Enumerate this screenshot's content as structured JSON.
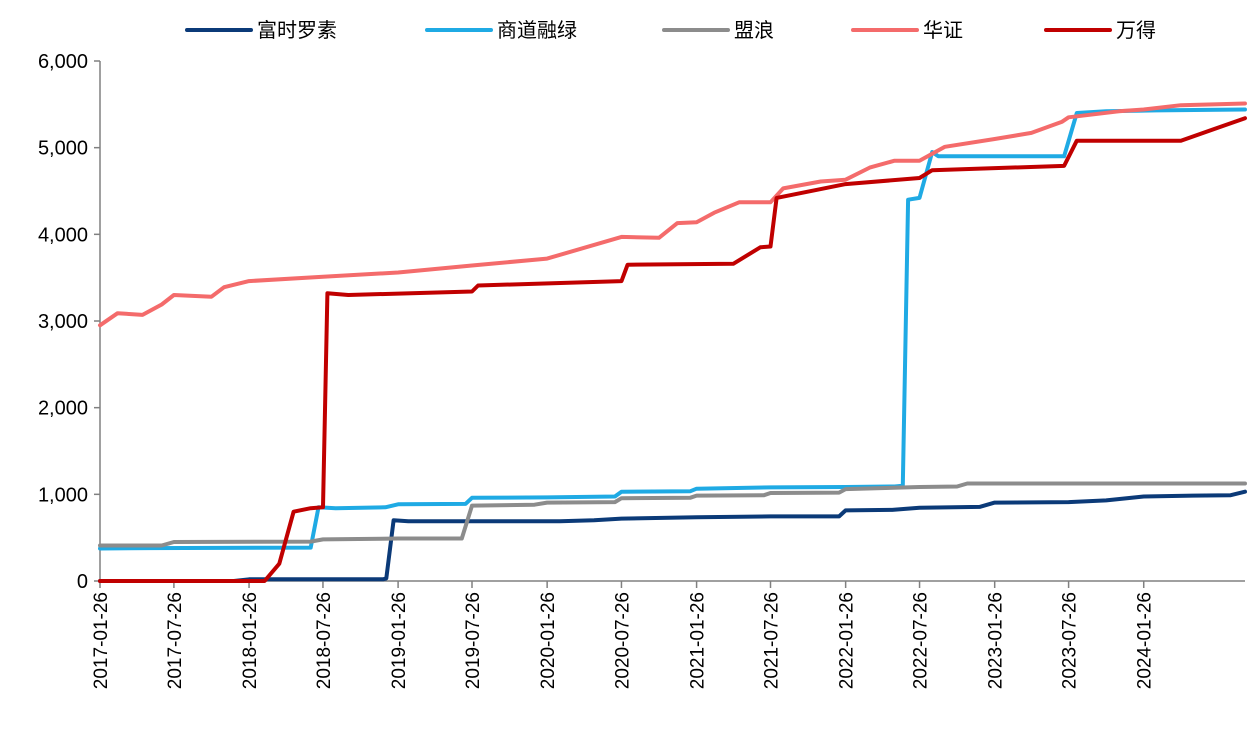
{
  "chart_data": {
    "type": "line",
    "title": "",
    "xlabel": "",
    "ylabel": "",
    "x_ticks": [
      "2017-01-26",
      "2017-07-26",
      "2018-01-26",
      "2018-07-26",
      "2019-01-26",
      "2019-07-26",
      "2020-01-26",
      "2020-07-26",
      "2021-01-26",
      "2021-07-26",
      "2022-01-26",
      "2022-07-26",
      "2023-01-26",
      "2023-07-26",
      "2024-01-26"
    ],
    "x_range": [
      "2017-01-26",
      "2024-09-30"
    ],
    "ylim": [
      0,
      6000
    ],
    "y_ticks": [
      "0",
      "1,000",
      "2,000",
      "3,000",
      "4,000",
      "5,000",
      "6,000"
    ],
    "grid": false,
    "legend_position": "top",
    "series": [
      {
        "name": "富时罗素",
        "color": "#0B3A78",
        "points": [
          [
            "2017-01-26",
            0
          ],
          [
            "2017-12-20",
            0
          ],
          [
            "2018-01-26",
            20
          ],
          [
            "2018-12-20",
            20
          ],
          [
            "2018-12-28",
            30
          ],
          [
            "2019-01-15",
            700
          ],
          [
            "2019-02-20",
            690
          ],
          [
            "2019-07-26",
            690
          ],
          [
            "2020-02-26",
            690
          ],
          [
            "2020-05-20",
            700
          ],
          [
            "2020-07-26",
            720
          ],
          [
            "2021-01-26",
            735
          ],
          [
            "2021-07-26",
            745
          ],
          [
            "2022-01-10",
            745
          ],
          [
            "2022-01-26",
            815
          ],
          [
            "2022-05-20",
            820
          ],
          [
            "2022-07-26",
            845
          ],
          [
            "2022-12-20",
            855
          ],
          [
            "2023-01-26",
            905
          ],
          [
            "2023-07-26",
            910
          ],
          [
            "2023-10-26",
            930
          ],
          [
            "2024-01-26",
            975
          ],
          [
            "2024-05-26",
            985
          ],
          [
            "2024-08-26",
            990
          ],
          [
            "2024-09-30",
            1030
          ]
        ]
      },
      {
        "name": "商道融绿",
        "color": "#1FAAE4",
        "points": [
          [
            "2017-01-26",
            375
          ],
          [
            "2017-05-26",
            380
          ],
          [
            "2018-06-26",
            385
          ],
          [
            "2018-07-15",
            850
          ],
          [
            "2018-08-26",
            840
          ],
          [
            "2018-12-26",
            850
          ],
          [
            "2019-01-26",
            885
          ],
          [
            "2019-07-10",
            890
          ],
          [
            "2019-07-26",
            960
          ],
          [
            "2020-01-26",
            965
          ],
          [
            "2020-07-10",
            975
          ],
          [
            "2020-07-26",
            1030
          ],
          [
            "2021-01-10",
            1035
          ],
          [
            "2021-01-26",
            1065
          ],
          [
            "2021-07-26",
            1080
          ],
          [
            "2022-01-26",
            1085
          ],
          [
            "2022-05-26",
            1090
          ],
          [
            "2022-06-15",
            1100
          ],
          [
            "2022-06-28",
            4400
          ],
          [
            "2022-07-26",
            4420
          ],
          [
            "2022-08-26",
            4950
          ],
          [
            "2022-09-10",
            4900
          ],
          [
            "2023-07-15",
            4900
          ],
          [
            "2023-08-15",
            5400
          ],
          [
            "2023-10-26",
            5420
          ],
          [
            "2024-02-26",
            5430
          ],
          [
            "2024-09-30",
            5440
          ]
        ]
      },
      {
        "name": "盟浪",
        "color": "#8C8C8C",
        "points": [
          [
            "2017-01-26",
            410
          ],
          [
            "2017-06-26",
            410
          ],
          [
            "2017-07-26",
            450
          ],
          [
            "2018-06-26",
            455
          ],
          [
            "2018-07-26",
            480
          ],
          [
            "2019-01-26",
            490
          ],
          [
            "2019-07-01",
            490
          ],
          [
            "2019-07-26",
            870
          ],
          [
            "2019-12-26",
            880
          ],
          [
            "2020-01-26",
            905
          ],
          [
            "2020-07-10",
            910
          ],
          [
            "2020-07-26",
            955
          ],
          [
            "2021-01-10",
            960
          ],
          [
            "2021-01-26",
            985
          ],
          [
            "2021-07-10",
            990
          ],
          [
            "2021-07-26",
            1015
          ],
          [
            "2022-01-10",
            1020
          ],
          [
            "2022-01-26",
            1060
          ],
          [
            "2022-07-26",
            1085
          ],
          [
            "2022-10-26",
            1090
          ],
          [
            "2022-11-20",
            1125
          ],
          [
            "2023-07-26",
            1125
          ],
          [
            "2024-09-30",
            1125
          ]
        ]
      },
      {
        "name": "华证",
        "color": "#F46B6B",
        "points": [
          [
            "2017-01-26",
            2950
          ],
          [
            "2017-03-10",
            3090
          ],
          [
            "2017-05-10",
            3070
          ],
          [
            "2017-06-26",
            3190
          ],
          [
            "2017-07-26",
            3300
          ],
          [
            "2017-10-26",
            3280
          ],
          [
            "2017-11-26",
            3390
          ],
          [
            "2018-01-26",
            3460
          ],
          [
            "2018-07-26",
            3510
          ],
          [
            "2019-01-26",
            3560
          ],
          [
            "2019-07-26",
            3640
          ],
          [
            "2020-01-26",
            3720
          ],
          [
            "2020-07-26",
            3970
          ],
          [
            "2020-10-26",
            3960
          ],
          [
            "2020-12-10",
            4130
          ],
          [
            "2021-01-26",
            4140
          ],
          [
            "2021-03-10",
            4250
          ],
          [
            "2021-05-10",
            4370
          ],
          [
            "2021-07-26",
            4370
          ],
          [
            "2021-08-26",
            4530
          ],
          [
            "2021-11-26",
            4610
          ],
          [
            "2022-01-26",
            4630
          ],
          [
            "2022-03-26",
            4770
          ],
          [
            "2022-05-26",
            4850
          ],
          [
            "2022-07-26",
            4850
          ],
          [
            "2022-09-26",
            5010
          ],
          [
            "2023-01-26",
            5100
          ],
          [
            "2023-04-26",
            5170
          ],
          [
            "2023-07-10",
            5300
          ],
          [
            "2023-07-26",
            5350
          ],
          [
            "2023-11-26",
            5420
          ],
          [
            "2024-01-26",
            5440
          ],
          [
            "2024-04-26",
            5490
          ],
          [
            "2024-09-30",
            5510
          ]
        ]
      },
      {
        "name": "万得",
        "color": "#C00000",
        "points": [
          [
            "2017-01-26",
            0
          ],
          [
            "2018-03-05",
            0
          ],
          [
            "2018-04-10",
            200
          ],
          [
            "2018-05-15",
            800
          ],
          [
            "2018-06-26",
            840
          ],
          [
            "2018-07-26",
            850
          ],
          [
            "2018-08-06",
            3320
          ],
          [
            "2018-09-26",
            3300
          ],
          [
            "2019-07-26",
            3340
          ],
          [
            "2019-08-10",
            3410
          ],
          [
            "2020-07-26",
            3460
          ],
          [
            "2020-08-10",
            3650
          ],
          [
            "2021-04-26",
            3660
          ],
          [
            "2021-07-01",
            3850
          ],
          [
            "2021-07-26",
            3860
          ],
          [
            "2021-08-10",
            4420
          ],
          [
            "2022-01-26",
            4580
          ],
          [
            "2022-07-26",
            4650
          ],
          [
            "2022-08-26",
            4740
          ],
          [
            "2023-07-15",
            4790
          ],
          [
            "2023-08-15",
            5080
          ],
          [
            "2024-04-26",
            5080
          ],
          [
            "2024-09-30",
            5340
          ]
        ]
      }
    ]
  }
}
